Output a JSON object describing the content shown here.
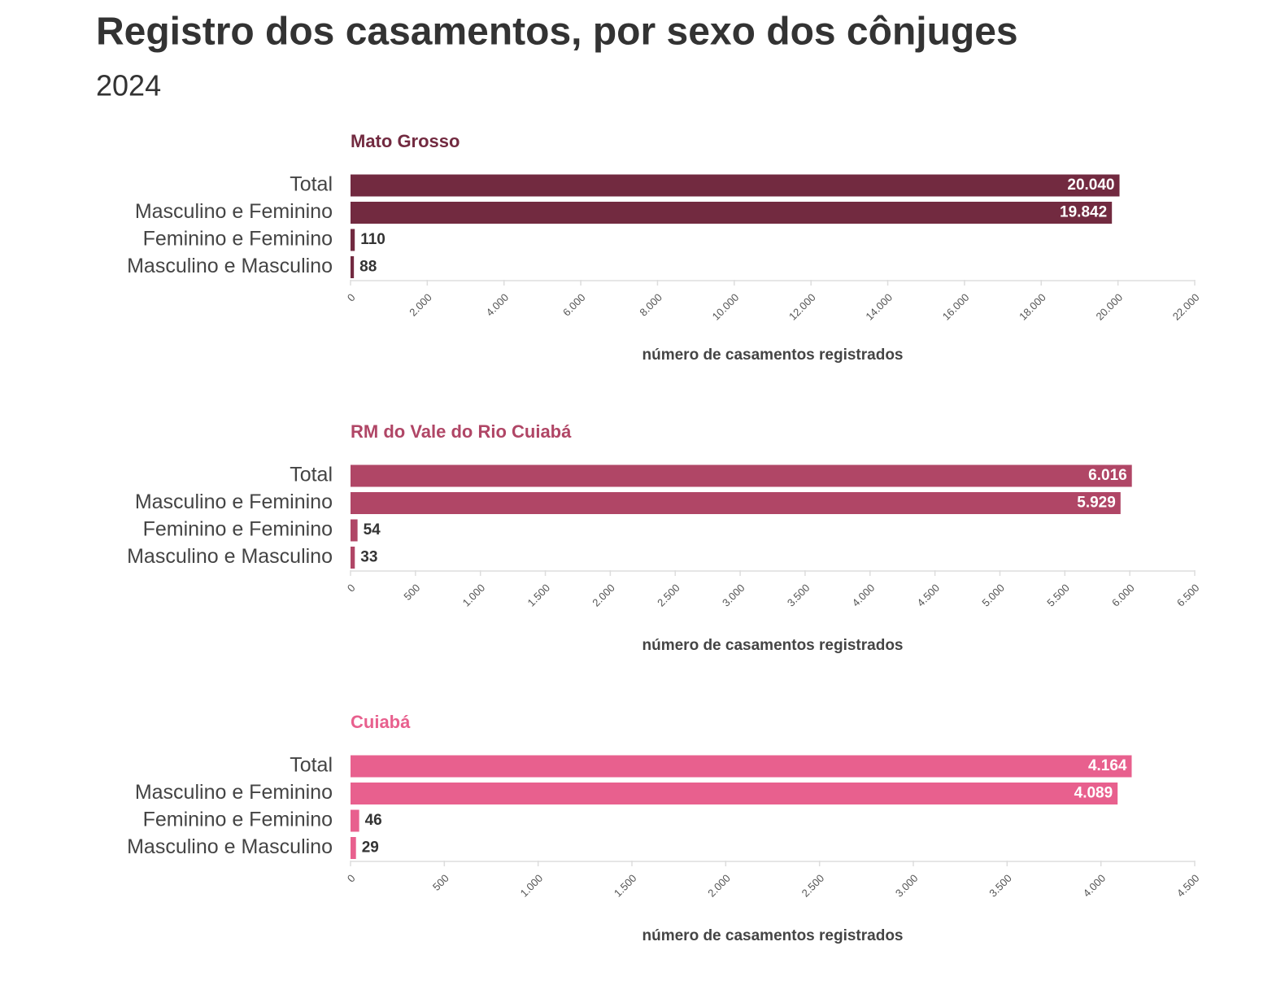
{
  "title": "Registro dos casamentos, por sexo dos cônjuges",
  "subtitle": "2024",
  "chart_data": [
    {
      "type": "bar",
      "orientation": "horizontal",
      "title": "Mato Grosso",
      "color": "#722a40",
      "categories": [
        "Total",
        "Masculino e Feminino",
        "Feminino e Feminino",
        "Masculino e Masculino"
      ],
      "values": [
        20040,
        19842,
        110,
        88
      ],
      "value_labels": [
        "20.040",
        "19.842",
        "110",
        "88"
      ],
      "xlim": [
        0,
        22000
      ],
      "xticks": [
        0,
        {
          "value": 2000,
          "label": "2.000"
        },
        {
          "value": 4000,
          "label": "4.000"
        },
        {
          "value": 6000,
          "label": "6.000"
        },
        {
          "value": 8000,
          "label": "8.000"
        },
        {
          "value": 10000,
          "label": "10.000"
        },
        {
          "value": 12000,
          "label": "12.000"
        },
        {
          "value": 14000,
          "label": "14.000"
        },
        {
          "value": 16000,
          "label": "16.000"
        },
        {
          "value": 18000,
          "label": "18.000"
        },
        {
          "value": 20000,
          "label": "20.000"
        },
        {
          "value": 22000,
          "label": "22.000"
        }
      ],
      "x_label": "número de casamentos registrados"
    },
    {
      "type": "bar",
      "orientation": "horizontal",
      "title": "RM do Vale do Rio Cuiabá",
      "color": "#b04666",
      "categories": [
        "Total",
        "Masculino e Feminino",
        "Feminino e Feminino",
        "Masculino e Masculino"
      ],
      "values": [
        6016,
        5929,
        54,
        33
      ],
      "value_labels": [
        "6.016",
        "5.929",
        "54",
        "33"
      ],
      "xlim": [
        0,
        6500
      ],
      "xticks": [
        0,
        500,
        {
          "value": 1000,
          "label": "1.000"
        },
        {
          "value": 1500,
          "label": "1.500"
        },
        {
          "value": 2000,
          "label": "2.000"
        },
        {
          "value": 2500,
          "label": "2.500"
        },
        {
          "value": 3000,
          "label": "3.000"
        },
        {
          "value": 3500,
          "label": "3.500"
        },
        {
          "value": 4000,
          "label": "4.000"
        },
        {
          "value": 4500,
          "label": "4.500"
        },
        {
          "value": 5000,
          "label": "5.000"
        },
        {
          "value": 5500,
          "label": "5.500"
        },
        {
          "value": 6000,
          "label": "6.000"
        },
        {
          "value": 6500,
          "label": "6.500"
        }
      ],
      "x_label": "número de casamentos registrados"
    },
    {
      "type": "bar",
      "orientation": "horizontal",
      "title": "Cuiabá",
      "color": "#e8608e",
      "categories": [
        "Total",
        "Masculino e Feminino",
        "Feminino e Feminino",
        "Masculino e Masculino"
      ],
      "values": [
        4164,
        4089,
        46,
        29
      ],
      "value_labels": [
        "4.164",
        "4.089",
        "46",
        "29"
      ],
      "xlim": [
        0,
        4500
      ],
      "xticks": [
        0,
        500,
        {
          "value": 1000,
          "label": "1.000"
        },
        {
          "value": 1500,
          "label": "1.500"
        },
        {
          "value": 2000,
          "label": "2.000"
        },
        {
          "value": 2500,
          "label": "2.500"
        },
        {
          "value": 3000,
          "label": "3.000"
        },
        {
          "value": 3500,
          "label": "3.500"
        },
        {
          "value": 4000,
          "label": "4.000"
        },
        {
          "value": 4500,
          "label": "4.500"
        }
      ],
      "x_label": "número de casamentos registrados"
    }
  ]
}
